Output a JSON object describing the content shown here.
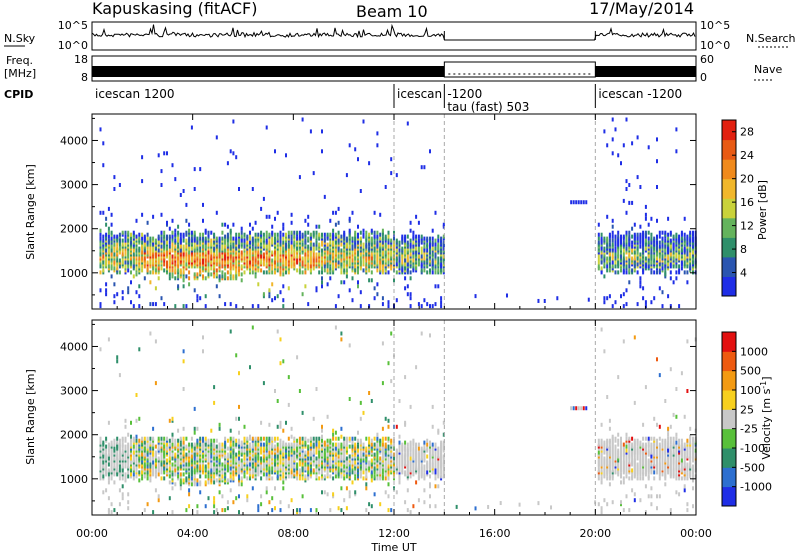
{
  "header": {
    "station": "Kapuskasing (fitACF)",
    "beam": "Beam 10",
    "date": "17/May/2014"
  },
  "top_panels": {
    "nsky_label": "N.Sky",
    "nsky_ticks": [
      "10^5",
      "10^0"
    ],
    "nsearch_label": "N.Search",
    "nsearch_ticks": [
      "10^5",
      "10^0"
    ],
    "freq_label_1": "Freq.",
    "freq_label_2": "[MHz]",
    "freq_ticks": [
      "18",
      "8"
    ],
    "nave_label": "Nave",
    "nave_ticks": [
      "60",
      "0"
    ],
    "cpid_label": "CPID",
    "cpid_segments": [
      {
        "start_hour": 0,
        "end_hour": 12,
        "line1": "icescan 1200",
        "line2": ""
      },
      {
        "start_hour": 12,
        "end_hour": 14,
        "line1": "icescan",
        "line2": ""
      },
      {
        "start_hour": 14,
        "end_hour": 20,
        "line1": "-1200",
        "line2": "tau (fast) 503"
      },
      {
        "start_hour": 20,
        "end_hour": 24,
        "line1": "icescan -1200",
        "line2": ""
      }
    ]
  },
  "chart_data": [
    {
      "type": "heatmap",
      "panel": "power",
      "ylabel": "Slant Range [km]",
      "xlabel": "Time UT",
      "x_ticks": [
        "00:00",
        "04:00",
        "08:00",
        "12:00",
        "16:00",
        "20:00",
        "00:00"
      ],
      "x_range_hours": [
        0,
        24
      ],
      "y_ticks": [
        1000,
        2000,
        3000,
        4000
      ],
      "y_range_km": [
        180,
        4600
      ],
      "colorbar_label": "Power [dB]",
      "colorbar_ticks": [
        4,
        8,
        12,
        16,
        20,
        24,
        28
      ],
      "colorbar_range": [
        0,
        30
      ],
      "colorbar_colors": [
        "#1f2ee6",
        "#2a55b0",
        "#2f8f6a",
        "#64b35c",
        "#c9d23a",
        "#f1b72b",
        "#f08a1c",
        "#e85a14",
        "#e22010"
      ],
      "echo_bands": [
        {
          "t0": 0.0,
          "t1": 12.0,
          "r0": 950,
          "r1": 1900,
          "dominant": "mixed high"
        },
        {
          "t0": 12.0,
          "t1": 14.0,
          "r0": 1000,
          "r1": 1800,
          "dominant": "low"
        },
        {
          "t0": 20.0,
          "t1": 24.0,
          "r0": 1050,
          "r1": 1950,
          "dominant": "mixed"
        }
      ]
    },
    {
      "type": "heatmap",
      "panel": "velocity",
      "ylabel": "Slant Range [km]",
      "xlabel": "Time UT",
      "x_ticks": [
        "00:00",
        "04:00",
        "08:00",
        "12:00",
        "16:00",
        "20:00",
        "00:00"
      ],
      "x_range_hours": [
        0,
        24
      ],
      "y_ticks": [
        1000,
        2000,
        3000,
        4000
      ],
      "y_range_km": [
        180,
        4600
      ],
      "colorbar_label": "Velocity [m s^-1]",
      "colorbar_ticks": [
        "1000",
        "500",
        "100",
        "25",
        "-25",
        "-100",
        "-500",
        "-1000"
      ],
      "colorbar_colors": [
        "#1f2ee6",
        "#2d6fd0",
        "#2f8f6a",
        "#58c03a",
        "#c8c8c8",
        "#f7d01e",
        "#f39a12",
        "#ee5a10",
        "#e31010"
      ],
      "echo_bands": [
        {
          "t0": 0.0,
          "t1": 12.0,
          "r0": 950,
          "r1": 1900,
          "dominant": "mixed"
        },
        {
          "t0": 12.0,
          "t1": 14.0,
          "r0": 1000,
          "r1": 1800,
          "dominant": "grey"
        },
        {
          "t0": 20.0,
          "t1": 24.0,
          "r0": 1050,
          "r1": 1950,
          "dominant": "grey"
        }
      ]
    }
  ]
}
